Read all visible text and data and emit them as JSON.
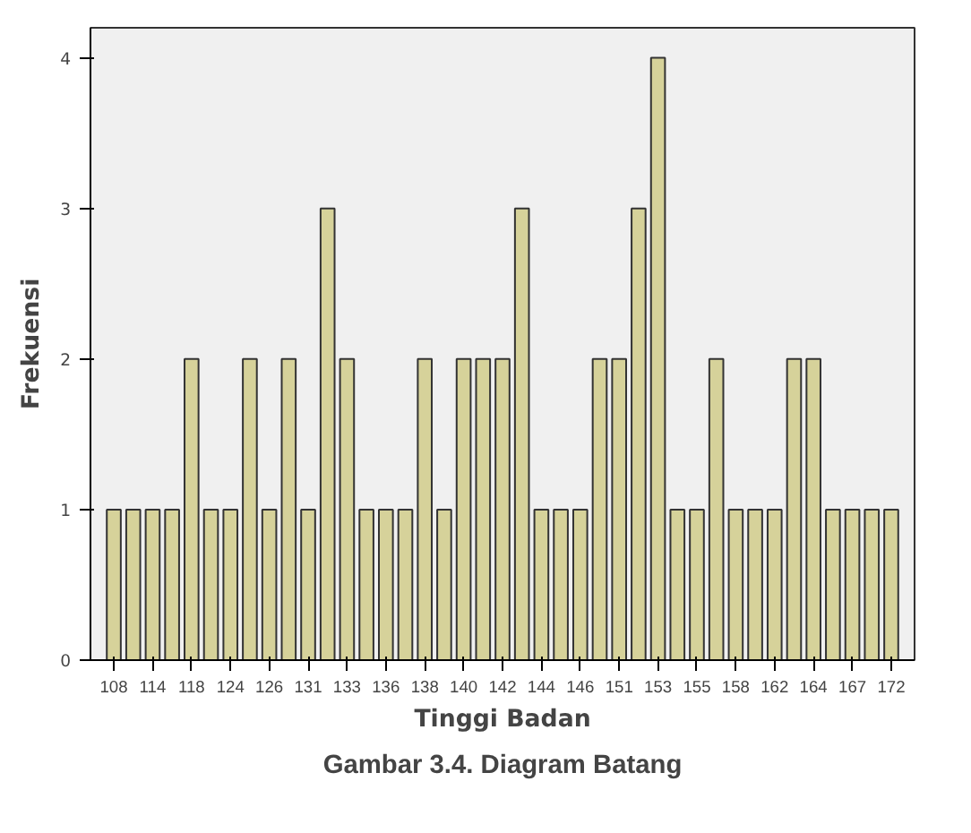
{
  "chart_data": {
    "type": "bar",
    "xlabel": "Tinggi Badan",
    "ylabel": "Frekuensi",
    "annotations": [
      "Gambar 3.4. Diagram Batang"
    ],
    "categories": [
      "108",
      null,
      "114",
      null,
      "118",
      null,
      "124",
      null,
      "126",
      null,
      "131",
      null,
      "133",
      null,
      "136",
      null,
      "138",
      null,
      "140",
      null,
      "142",
      null,
      "144",
      null,
      "146",
      null,
      "151",
      null,
      "153",
      null,
      "155",
      null,
      "158",
      null,
      "162",
      null,
      "164",
      null,
      "167",
      null,
      "172"
    ],
    "values": [
      1,
      1,
      1,
      1,
      2,
      1,
      1,
      2,
      1,
      2,
      1,
      3,
      2,
      1,
      1,
      1,
      2,
      1,
      2,
      2,
      2,
      3,
      1,
      1,
      1,
      2,
      2,
      3,
      4,
      1,
      1,
      2,
      1,
      1,
      1,
      2,
      2,
      1,
      1,
      1,
      1
    ],
    "color": "#d6d29a",
    "ylim": [
      0,
      4.2
    ],
    "yticks": [
      0,
      1,
      2,
      3,
      4
    ],
    "grid": false
  }
}
